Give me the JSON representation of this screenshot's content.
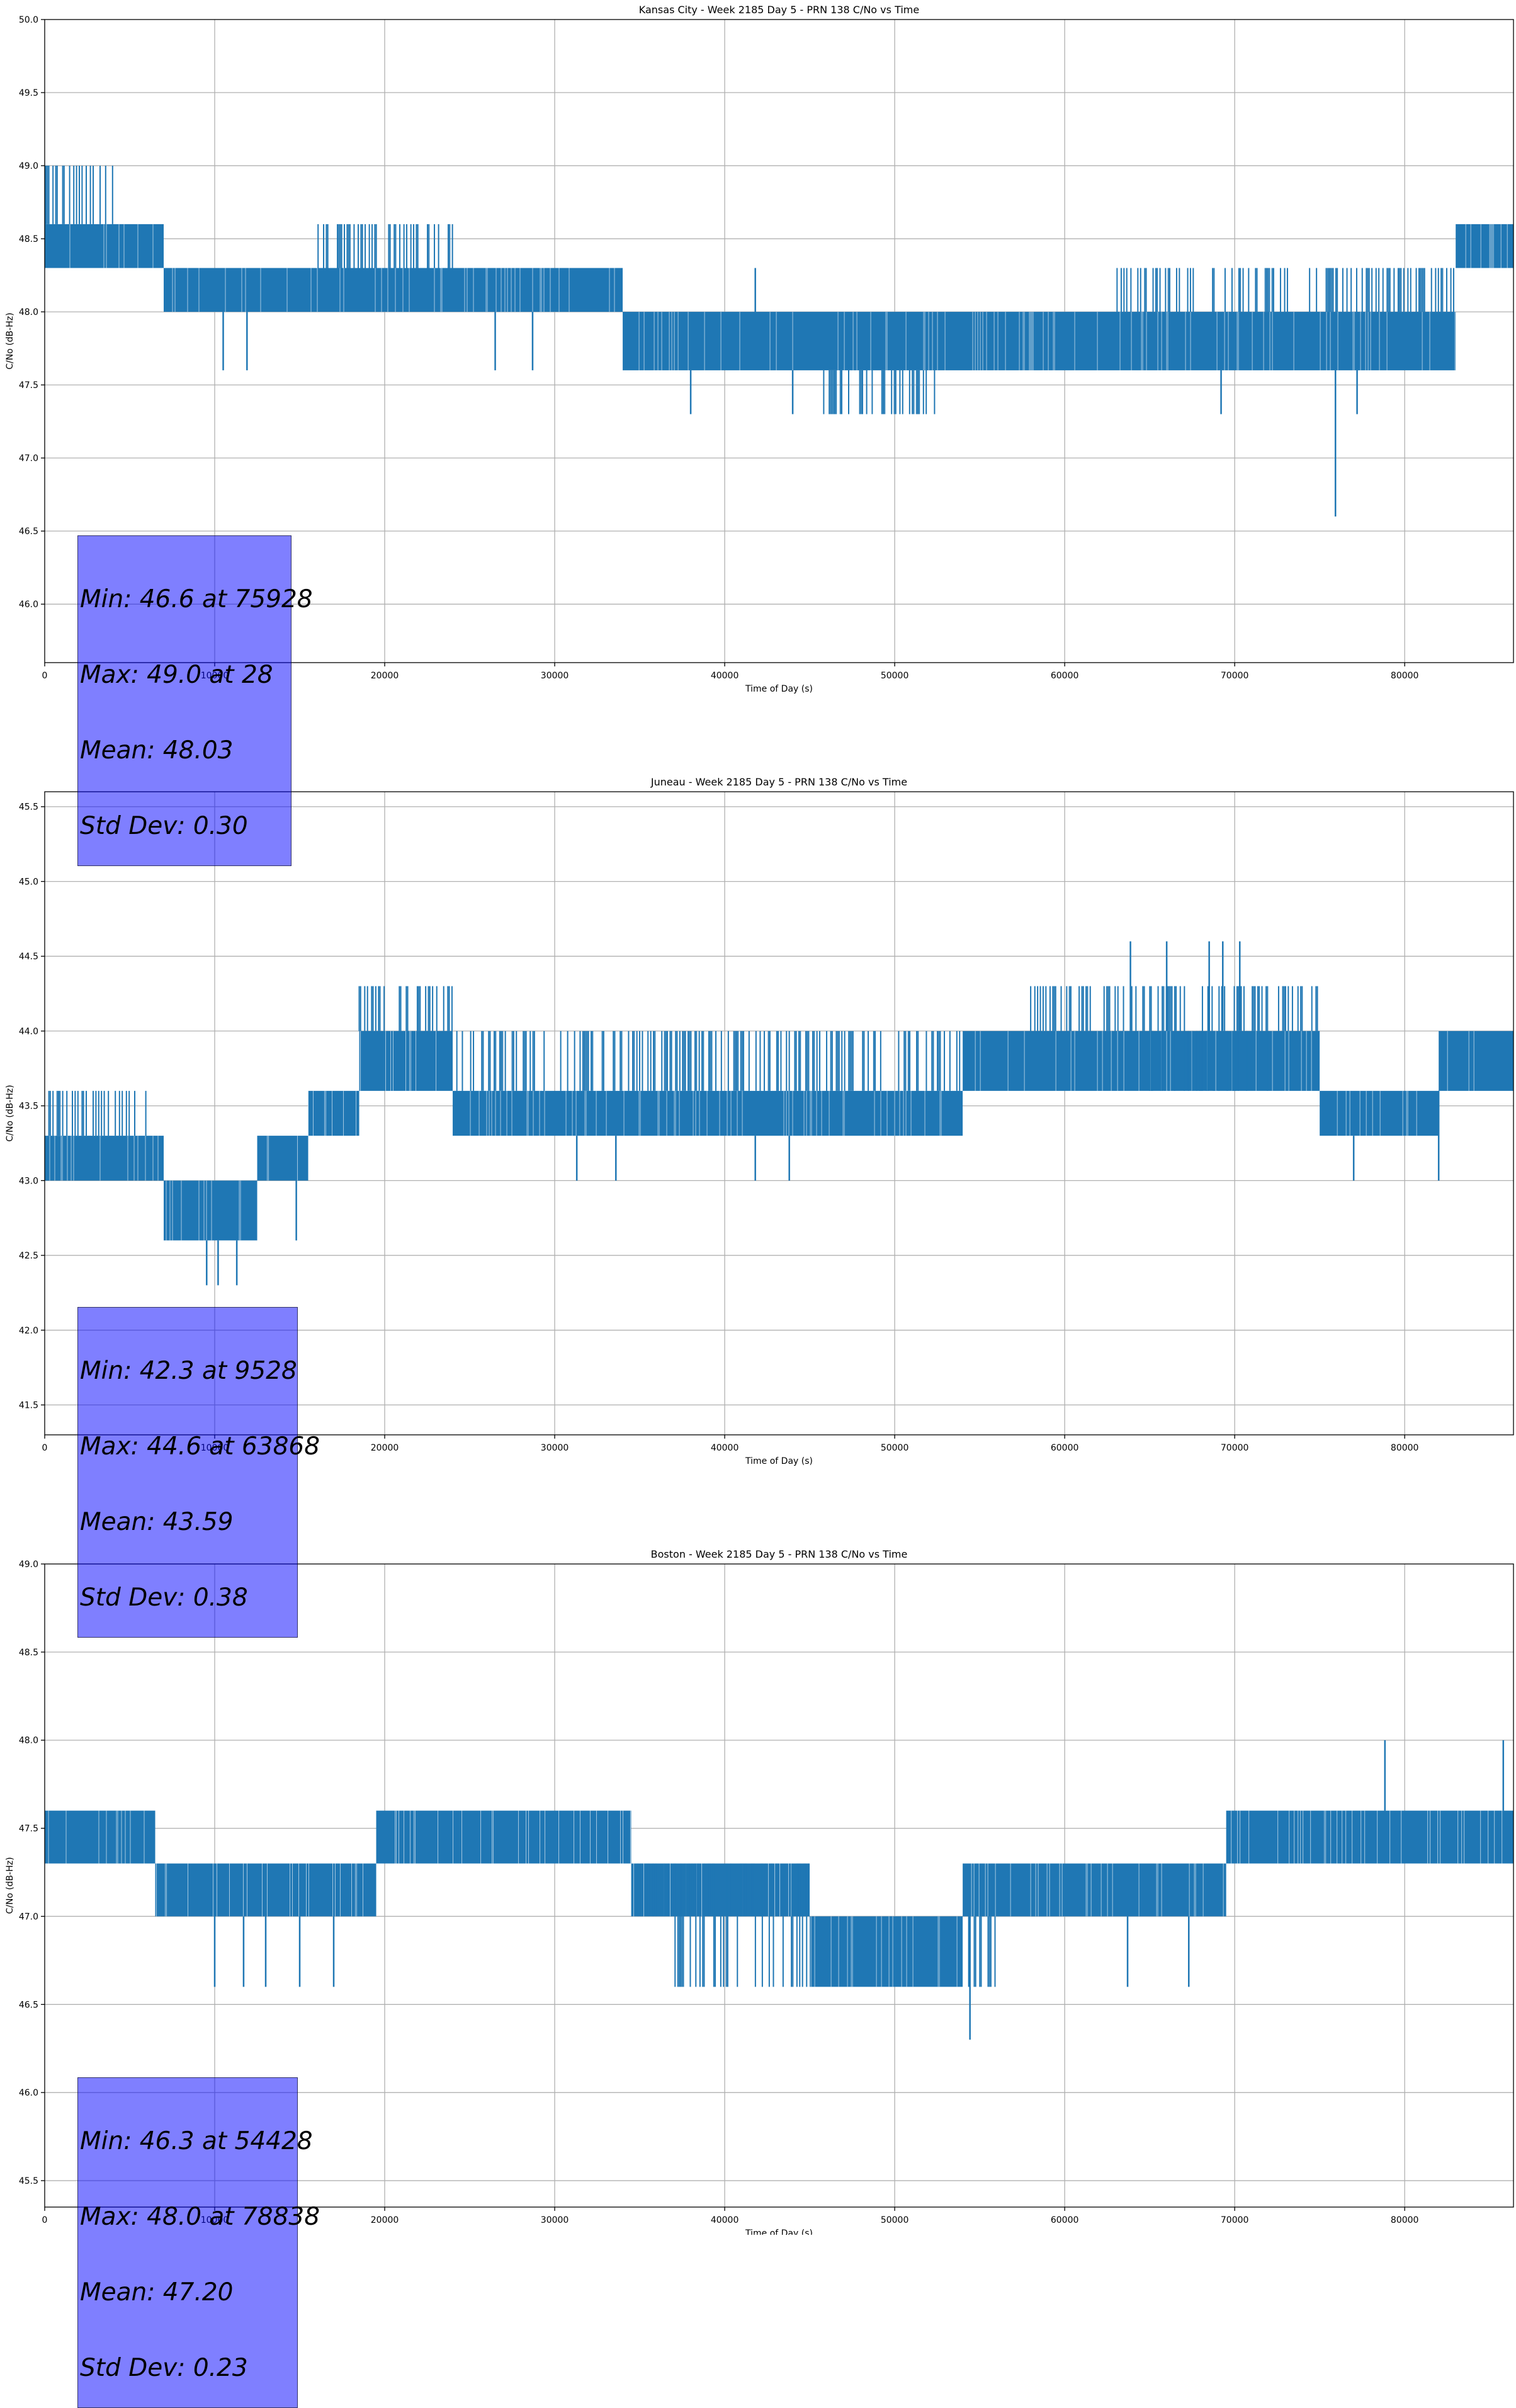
{
  "chart_data": [
    {
      "type": "line",
      "title": "Kansas City - Week 2185 Day 5 - PRN 138 C/No vs Time",
      "xlabel": "Time of Day (s)",
      "ylabel": "C/No (dB-Hz)",
      "xlim": [
        0,
        86400
      ],
      "ylim": [
        45.6,
        50.0
      ],
      "xticks": [
        0,
        10000,
        20000,
        30000,
        40000,
        50000,
        60000,
        70000,
        80000
      ],
      "yticks": [
        46.0,
        46.5,
        47.0,
        47.5,
        48.0,
        48.5,
        49.0,
        49.5,
        50.0
      ],
      "ytick_labels": [
        "46.0",
        "46.5",
        "47.0",
        "47.5",
        "48.0",
        "48.5",
        "49.0",
        "49.5",
        "50.0"
      ],
      "grid": true,
      "color": "#1f77b4",
      "series": [
        {
          "levels": [
            {
              "x": [
                0,
                7000
              ],
              "low": 48.3,
              "high": 48.6
            },
            {
              "x": [
                7000,
                34000
              ],
              "low": 48.0,
              "high": 48.3
            },
            {
              "x": [
                34000,
                83000
              ],
              "low": 47.6,
              "high": 48.0
            },
            {
              "x": [
                83000,
                86400
              ],
              "low": 48.3,
              "high": 48.6
            }
          ],
          "bursts": [
            {
              "x": [
                0,
                4000
              ],
              "value": 49.0
            },
            {
              "x": [
                16000,
                24000
              ],
              "value": 48.6
            },
            {
              "x": [
                63000,
                83000
              ],
              "value": 48.3
            },
            {
              "x": [
                45500,
                52500
              ],
              "value": 47.3
            }
          ],
          "spikes": [
            {
              "x": 28,
              "value": 49.0
            },
            {
              "x": 10500,
              "value": 47.6
            },
            {
              "x": 11900,
              "value": 47.6
            },
            {
              "x": 26500,
              "value": 47.6
            },
            {
              "x": 28700,
              "value": 47.6
            },
            {
              "x": 38000,
              "value": 47.3
            },
            {
              "x": 41800,
              "value": 48.3
            },
            {
              "x": 44000,
              "value": 47.3
            },
            {
              "x": 69200,
              "value": 47.3
            },
            {
              "x": 75928,
              "value": 46.6
            },
            {
              "x": 77200,
              "value": 47.3
            }
          ]
        }
      ],
      "stats": [
        "Min: 46.6 at 75928",
        "Max: 49.0 at 28",
        "Mean: 48.03",
        "Std Dev: 0.30"
      ]
    },
    {
      "type": "line",
      "title": "Juneau - Week 2185 Day 5 - PRN 138 C/No vs Time",
      "xlabel": "Time of Day (s)",
      "ylabel": "C/No (dB-Hz)",
      "xlim": [
        0,
        86400
      ],
      "ylim": [
        41.3,
        45.6
      ],
      "xticks": [
        0,
        10000,
        20000,
        30000,
        40000,
        50000,
        60000,
        70000,
        80000
      ],
      "yticks": [
        41.5,
        42.0,
        42.5,
        43.0,
        43.5,
        44.0,
        44.5,
        45.0,
        45.5
      ],
      "ytick_labels": [
        "41.5",
        "42.0",
        "42.5",
        "43.0",
        "43.5",
        "44.0",
        "44.5",
        "45.0",
        "45.5"
      ],
      "grid": true,
      "color": "#1f77b4",
      "series": [
        {
          "levels": [
            {
              "x": [
                0,
                7000
              ],
              "low": 43.0,
              "high": 43.3
            },
            {
              "x": [
                7000,
                12500
              ],
              "low": 42.6,
              "high": 43.0
            },
            {
              "x": [
                12500,
                15500
              ],
              "low": 43.0,
              "high": 43.3
            },
            {
              "x": [
                15500,
                18500
              ],
              "low": 43.3,
              "high": 43.6
            },
            {
              "x": [
                18500,
                24000
              ],
              "low": 43.6,
              "high": 44.0
            },
            {
              "x": [
                24000,
                54000
              ],
              "low": 43.3,
              "high": 43.6
            },
            {
              "x": [
                54000,
                75000
              ],
              "low": 43.6,
              "high": 44.0
            },
            {
              "x": [
                75000,
                82000
              ],
              "low": 43.3,
              "high": 43.6
            },
            {
              "x": [
                82000,
                86400
              ],
              "low": 43.6,
              "high": 44.0
            }
          ],
          "bursts": [
            {
              "x": [
                0,
                6500
              ],
              "value": 43.6
            },
            {
              "x": [
                24000,
                54000
              ],
              "value": 44.0
            },
            {
              "x": [
                18500,
                24000
              ],
              "value": 44.3
            },
            {
              "x": [
                58000,
                75000
              ],
              "value": 44.3
            },
            {
              "x": [
                65000,
                72000
              ],
              "value": 44.0
            }
          ],
          "spikes": [
            {
              "x": 9528,
              "value": 42.3
            },
            {
              "x": 10200,
              "value": 42.3
            },
            {
              "x": 11300,
              "value": 42.3
            },
            {
              "x": 14800,
              "value": 42.6
            },
            {
              "x": 31300,
              "value": 43.0
            },
            {
              "x": 33600,
              "value": 43.0
            },
            {
              "x": 41800,
              "value": 43.0
            },
            {
              "x": 43800,
              "value": 43.0
            },
            {
              "x": 63868,
              "value": 44.6
            },
            {
              "x": 66000,
              "value": 44.6
            },
            {
              "x": 68500,
              "value": 44.6
            },
            {
              "x": 69300,
              "value": 44.6
            },
            {
              "x": 70300,
              "value": 44.6
            },
            {
              "x": 77000,
              "value": 43.0
            },
            {
              "x": 82000,
              "value": 43.0
            }
          ]
        }
      ],
      "stats": [
        "Min: 42.3 at 9528",
        "Max: 44.6 at 63868",
        "Mean: 43.59",
        "Std Dev: 0.38"
      ]
    },
    {
      "type": "line",
      "title": "Boston - Week 2185 Day 5 - PRN 138 C/No vs Time",
      "xlabel": "Time of Day (s)",
      "ylabel": "C/No (dB-Hz)",
      "xlim": [
        0,
        86400
      ],
      "ylim": [
        45.35,
        49.0
      ],
      "xticks": [
        0,
        10000,
        20000,
        30000,
        40000,
        50000,
        60000,
        70000,
        80000
      ],
      "yticks": [
        45.5,
        46.0,
        46.5,
        47.0,
        47.5,
        48.0,
        48.5,
        49.0
      ],
      "ytick_labels": [
        "45.5",
        "46.0",
        "46.5",
        "47.0",
        "47.5",
        "48.0",
        "48.5",
        "49.0"
      ],
      "grid": true,
      "color": "#1f77b4",
      "series": [
        {
          "levels": [
            {
              "x": [
                0,
                6500
              ],
              "low": 47.3,
              "high": 47.6
            },
            {
              "x": [
                6500,
                19500
              ],
              "low": 47.0,
              "high": 47.3
            },
            {
              "x": [
                19500,
                34500
              ],
              "low": 47.3,
              "high": 47.6
            },
            {
              "x": [
                34500,
                45000
              ],
              "low": 47.0,
              "high": 47.3
            },
            {
              "x": [
                45000,
                54000
              ],
              "low": 46.6,
              "high": 47.0
            },
            {
              "x": [
                54000,
                69500
              ],
              "low": 47.0,
              "high": 47.3
            },
            {
              "x": [
                69500,
                86400
              ],
              "low": 47.3,
              "high": 47.6
            }
          ],
          "bursts": [
            {
              "x": [
                37000,
                56000
              ],
              "value": 46.6
            },
            {
              "x": [
                34000,
                45000
              ],
              "value": 47.3
            }
          ],
          "spikes": [
            {
              "x": 10000,
              "value": 46.6
            },
            {
              "x": 11700,
              "value": 46.6
            },
            {
              "x": 13000,
              "value": 46.6
            },
            {
              "x": 15000,
              "value": 46.6
            },
            {
              "x": 17000,
              "value": 46.6
            },
            {
              "x": 54428,
              "value": 46.3
            },
            {
              "x": 63700,
              "value": 46.6
            },
            {
              "x": 67300,
              "value": 46.6
            },
            {
              "x": 78838,
              "value": 48.0
            },
            {
              "x": 85800,
              "value": 48.0
            }
          ]
        }
      ],
      "stats": [
        "Min: 46.3 at 54428",
        "Max: 48.0 at 78838",
        "Mean: 47.20",
        "Std Dev: 0.23"
      ]
    }
  ]
}
